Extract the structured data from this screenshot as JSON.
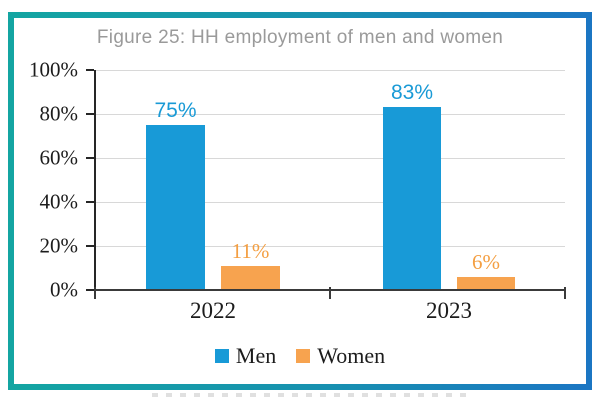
{
  "figure": {
    "title": "Figure 25: HH employment of men and women"
  },
  "chart_data": {
    "type": "bar",
    "title": "Figure 25: HH employment of men and women",
    "categories": [
      "2022",
      "2023"
    ],
    "series": [
      {
        "name": "Men",
        "color": "#189AD7",
        "values": [
          75,
          83
        ],
        "data_labels": [
          "75%",
          "83%"
        ]
      },
      {
        "name": "Women",
        "color": "#F7A34F",
        "values": [
          11,
          6
        ],
        "data_labels": [
          "11%",
          "6%"
        ]
      }
    ],
    "ylim": [
      0,
      100
    ],
    "y_tick_interval": 20,
    "y_tick_labels": [
      "100%",
      "80%",
      "60%",
      "40%",
      "20%",
      "0%"
    ],
    "grid": true,
    "legend_position": "bottom",
    "xlabel": "",
    "ylabel": ""
  },
  "colors": {
    "border_gradient_left": "#14A5A2",
    "border_gradient_right": "#1B76C3",
    "men_series": "#189AD7",
    "women_series": "#F7A34F",
    "men_label_text": "#199AD6",
    "women_label_text": "#F49F42",
    "title_text": "#9A9A9A",
    "axis_text": "#1C1C1C",
    "gridline": "#D8D8D8"
  }
}
